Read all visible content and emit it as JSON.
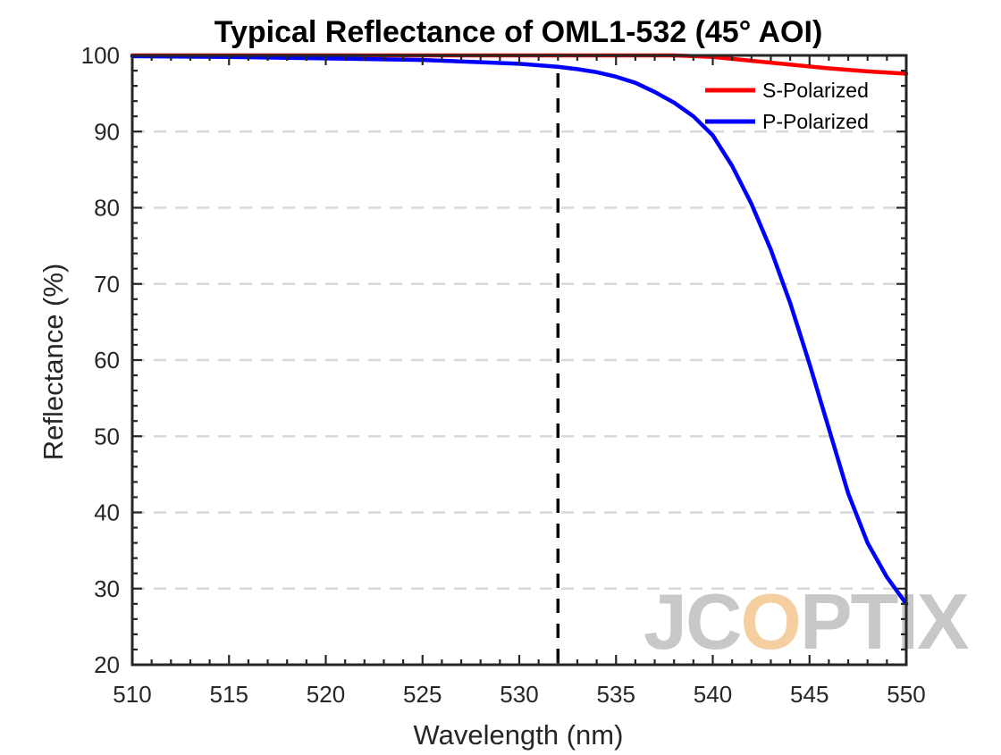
{
  "chart_data": {
    "type": "line",
    "title": "Typical Reflectance of OML1-532 (45° AOI)",
    "xlabel": "Wavelength (nm)",
    "ylabel": "Reflectance (%)",
    "xlim": [
      510,
      550
    ],
    "ylim": [
      20,
      100
    ],
    "xticks": [
      510,
      515,
      520,
      525,
      530,
      535,
      540,
      545,
      550
    ],
    "yticks": [
      20,
      30,
      40,
      50,
      60,
      70,
      80,
      90,
      100
    ],
    "xtick_labels": [
      "510",
      "515",
      "520",
      "525",
      "530",
      "535",
      "540",
      "545",
      "550"
    ],
    "ytick_labels": [
      "20",
      "30",
      "40",
      "50",
      "60",
      "70",
      "80",
      "90",
      "100"
    ],
    "grid": "horizontal-dashed",
    "legend_position": "top-right",
    "reference_line": {
      "x": 532,
      "style": "dashed",
      "color": "#000000"
    },
    "series": [
      {
        "name": "S-Polarized",
        "color": "#ff0000",
        "x": [
          510,
          515,
          520,
          525,
          530,
          532,
          535,
          538,
          540,
          542,
          544,
          546,
          548,
          550
        ],
        "y": [
          100,
          100,
          100,
          100,
          100,
          100,
          100,
          100,
          99.8,
          99.3,
          98.8,
          98.3,
          97.9,
          97.6
        ]
      },
      {
        "name": "P-Polarized",
        "color": "#0000ff",
        "x": [
          510,
          515,
          520,
          525,
          528,
          530,
          532,
          533,
          534,
          535,
          536,
          537,
          538,
          539,
          540,
          541,
          542,
          543,
          544,
          545,
          546,
          547,
          548,
          549,
          550
        ],
        "y": [
          99.9,
          99.8,
          99.6,
          99.4,
          99.1,
          98.9,
          98.5,
          98.2,
          97.8,
          97.2,
          96.4,
          95.2,
          93.8,
          92.0,
          89.5,
          85.5,
          80.5,
          74.5,
          67.5,
          59.5,
          51.0,
          42.5,
          36.0,
          31.5,
          28.0
        ]
      }
    ],
    "watermark": {
      "text": "JCOPTIX",
      "color_main": "#c8c8c8",
      "color_accent": "#f5cfa0"
    }
  }
}
